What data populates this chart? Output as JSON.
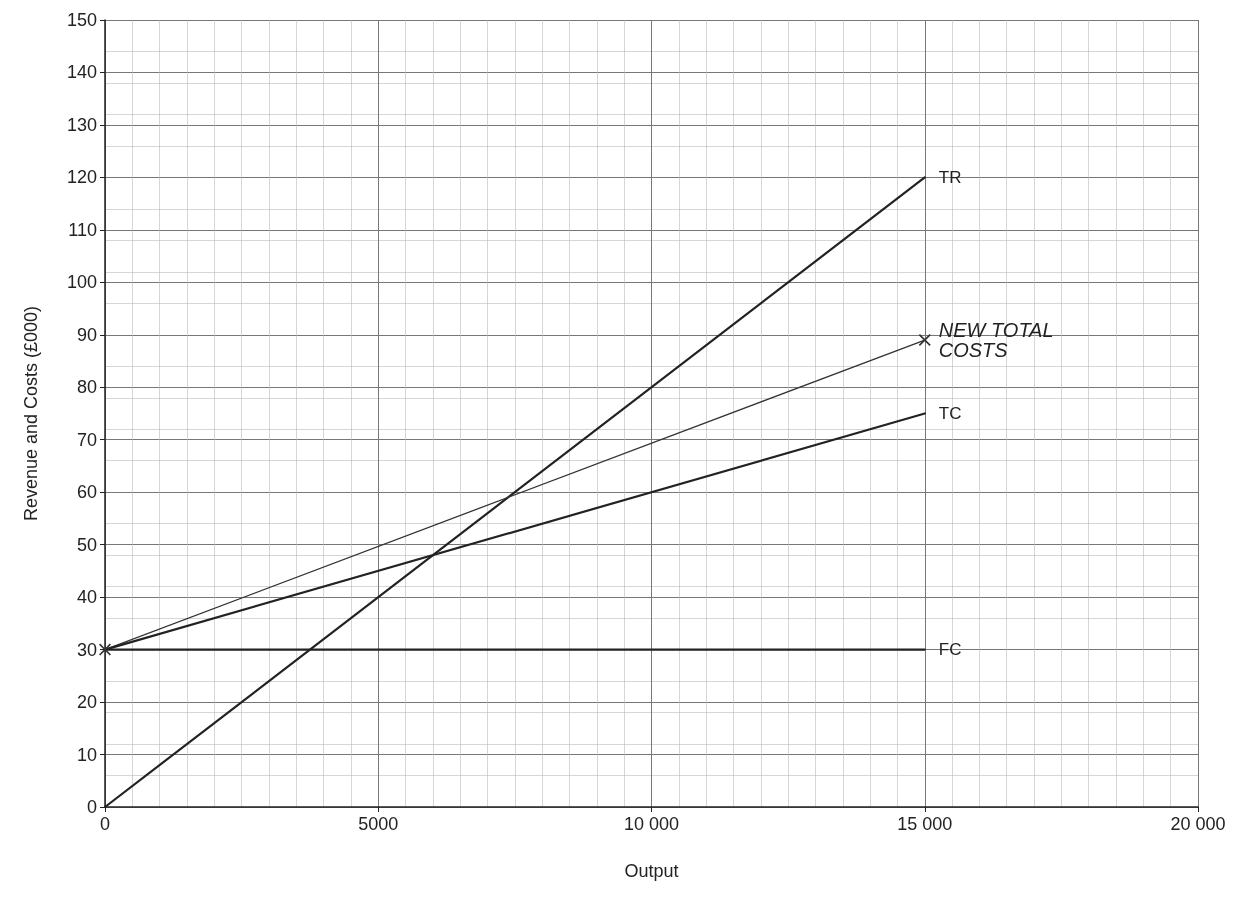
{
  "chart_data": {
    "type": "line",
    "xlabel": "Output",
    "ylabel": "Revenue and Costs (£000)",
    "x": [
      0,
      15000
    ],
    "series": [
      {
        "name": "TR",
        "color": "#222222",
        "values": [
          0,
          120
        ]
      },
      {
        "name": "NEW TOTAL COSTS",
        "color": "#333333",
        "values": [
          30,
          89
        ],
        "marker": "cross"
      },
      {
        "name": "TC",
        "color": "#222222",
        "values": [
          30,
          75
        ]
      },
      {
        "name": "FC",
        "color": "#222222",
        "values": [
          30,
          30
        ]
      }
    ],
    "xlim": [
      0,
      20000
    ],
    "xticks": [
      0,
      5000,
      {
        "value": 10000,
        "label": "10 000"
      },
      {
        "value": 15000,
        "label": "15 000"
      },
      {
        "value": 20000,
        "label": "20 000"
      }
    ],
    "ylim": [
      0,
      150
    ],
    "yticks": [
      0,
      10,
      20,
      30,
      40,
      50,
      60,
      70,
      80,
      90,
      100,
      110,
      120,
      130,
      140,
      150
    ],
    "grid": true,
    "marker": "none",
    "line_style": "solid",
    "legend": false
  }
}
